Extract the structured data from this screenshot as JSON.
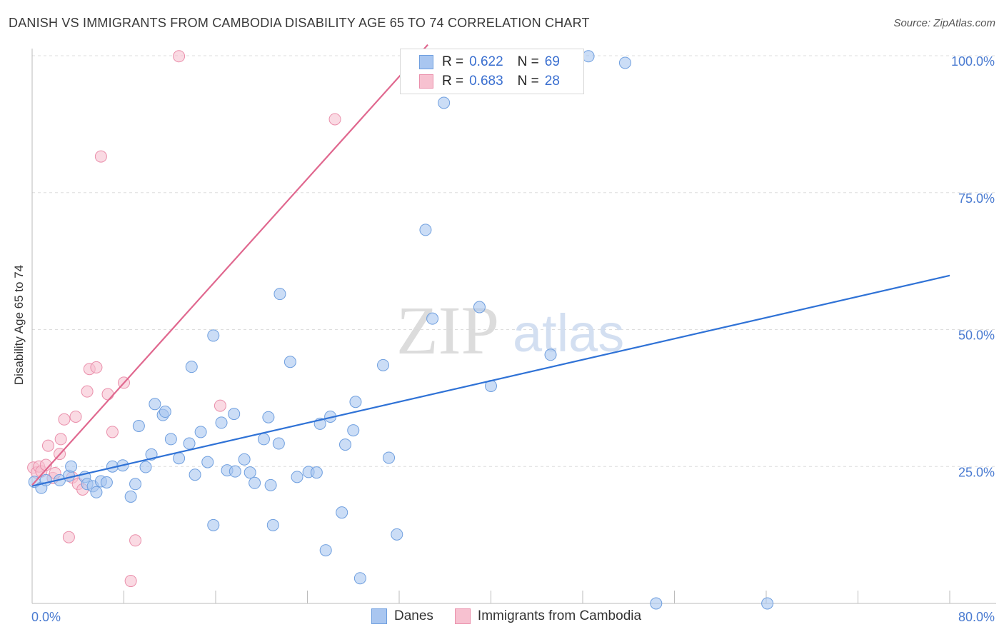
{
  "title": "DANISH VS IMMIGRANTS FROM CAMBODIA DISABILITY AGE 65 TO 74 CORRELATION CHART",
  "source": "Source: ZipAtlas.com",
  "watermark": {
    "zip": "ZIP",
    "atlas": "atlas"
  },
  "colors": {
    "danes_fill": "#a9c6f0",
    "danes_stroke": "#6f9fdf",
    "danes_line": "#2f72d6",
    "camb_fill": "#f7c1d0",
    "camb_stroke": "#ea8fab",
    "camb_line": "#e0688f",
    "tick_text": "#4a7bd1",
    "grid": "#dddddd"
  },
  "legend": {
    "rows": [
      {
        "r_label": "R =",
        "r_value": "0.622",
        "n_label": "N =",
        "n_value": "69"
      },
      {
        "r_label": "R =",
        "r_value": "0.683",
        "n_label": "N =",
        "n_value": "28"
      }
    ]
  },
  "chart_data": {
    "type": "scatter",
    "title": "DANISH VS IMMIGRANTS FROM CAMBODIA DISABILITY AGE 65 TO 74 CORRELATION CHART",
    "xlabel": "",
    "ylabel": "Disability Age 65 to 74",
    "xlim": [
      0,
      80
    ],
    "ylim": [
      0,
      100
    ],
    "x_ticks": [
      "0.0%",
      "80.0%"
    ],
    "y_ticks": [
      "25.0%",
      "50.0%",
      "75.0%",
      "100.0%"
    ],
    "y_tick_values": [
      25,
      50,
      75,
      100
    ],
    "grid": true,
    "legend_position": "top-center",
    "series": [
      {
        "name": "Danes",
        "x": [
          0.2,
          0.8,
          1.2,
          2.4,
          3.2,
          3.4,
          4.6,
          4.8,
          5.3,
          5.6,
          6.0,
          6.5,
          7.0,
          7.9,
          8.6,
          9.0,
          9.3,
          9.9,
          10.4,
          10.7,
          11.4,
          11.6,
          12.1,
          12.8,
          13.7,
          13.9,
          14.2,
          14.7,
          15.3,
          15.8,
          15.8,
          16.5,
          17.0,
          17.6,
          17.7,
          18.5,
          19.0,
          19.4,
          20.2,
          20.6,
          20.8,
          21.0,
          21.5,
          21.6,
          22.5,
          23.1,
          24.1,
          24.8,
          25.1,
          25.6,
          26.0,
          27.0,
          27.3,
          28.0,
          28.2,
          28.6,
          30.6,
          31.1,
          31.8,
          34.3,
          34.9,
          35.9,
          39.0,
          40.0,
          45.2,
          48.5,
          51.7,
          54.4,
          64.1
        ],
        "y": [
          22.2,
          21.1,
          22.5,
          22.5,
          23.3,
          25.0,
          23.1,
          21.8,
          21.4,
          20.3,
          22.3,
          22.1,
          25.0,
          25.2,
          19.5,
          21.8,
          32.4,
          24.9,
          27.2,
          36.4,
          34.4,
          35.0,
          30.0,
          26.5,
          29.2,
          43.2,
          23.5,
          31.3,
          25.8,
          48.9,
          14.3,
          33.0,
          24.3,
          34.6,
          24.1,
          26.3,
          23.9,
          22.0,
          30.0,
          34.0,
          21.6,
          14.3,
          29.2,
          56.5,
          44.1,
          23.1,
          24.0,
          23.9,
          32.8,
          9.7,
          34.1,
          16.6,
          29.0,
          31.6,
          36.8,
          4.6,
          43.5,
          26.6,
          12.6,
          68.2,
          52.0,
          91.4,
          54.1,
          39.7,
          45.4,
          99.9,
          98.7,
          0.0,
          0.0
        ]
      },
      {
        "name": "Immigrants from Cambodia",
        "x": [
          0.1,
          0.4,
          0.6,
          0.8,
          1.2,
          1.4,
          1.8,
          2.0,
          2.4,
          2.5,
          2.8,
          3.2,
          3.5,
          3.8,
          4.0,
          4.4,
          4.8,
          5.0,
          5.6,
          6.0,
          6.6,
          7.0,
          8.0,
          8.6,
          9.0,
          12.8,
          16.4,
          26.4
        ],
        "y": [
          24.8,
          23.9,
          25.0,
          24.1,
          25.3,
          28.8,
          22.9,
          23.8,
          27.3,
          30.0,
          33.6,
          12.1,
          23.0,
          34.1,
          21.8,
          20.8,
          38.7,
          42.8,
          43.1,
          81.6,
          38.2,
          31.3,
          40.3,
          4.1,
          11.5,
          99.9,
          36.1,
          88.4
        ]
      }
    ]
  },
  "bottom_legend": {
    "danes": "Danes",
    "cambodia": "Immigrants from Cambodia"
  }
}
